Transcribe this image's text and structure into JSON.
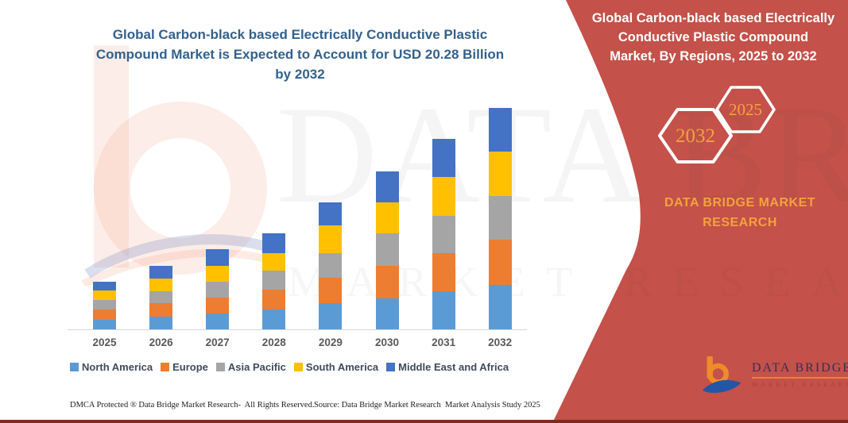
{
  "left_chart": {
    "title_lines": [
      "Global Carbon-black based Electrically Conductive Plastic",
      "Compound Market is Expected to Account for USD 20.28 Billion",
      "by 2032"
    ]
  },
  "chart_data": {
    "type": "bar",
    "stacked": true,
    "title": "Global Carbon-black based Electrically Conductive Plastic Compound Market is Expected to Account for USD 20.28 Billion by 2032",
    "value_unit": "USD Billion",
    "categories": [
      "2025",
      "2026",
      "2027",
      "2028",
      "2029",
      "2030",
      "2031",
      "2032"
    ],
    "series": [
      {
        "name": "North America",
        "color": "#5B9BD5",
        "values": [
          0.9,
          1.2,
          1.45,
          1.8,
          2.38,
          2.85,
          3.5,
          4.08
        ]
      },
      {
        "name": "Europe",
        "color": "#ED7D31",
        "values": [
          0.92,
          1.17,
          1.48,
          1.8,
          2.38,
          2.98,
          3.5,
          4.12
        ]
      },
      {
        "name": "Asia Pacific",
        "color": "#A5A5A5",
        "values": [
          0.85,
          1.1,
          1.42,
          1.78,
          2.2,
          2.95,
          3.42,
          4.01
        ]
      },
      {
        "name": "South America",
        "color": "#FFC000",
        "values": [
          0.87,
          1.18,
          1.47,
          1.62,
          2.6,
          2.82,
          3.5,
          4.06
        ]
      },
      {
        "name": "Middle East and Africa",
        "color": "#4472C4",
        "values": [
          0.83,
          1.2,
          1.5,
          1.8,
          2.04,
          2.9,
          3.48,
          4.01
        ]
      }
    ],
    "totals": [
      4.37,
      5.85,
      7.32,
      8.8,
      11.6,
      14.5,
      17.4,
      20.28
    ],
    "xlabel": "",
    "ylabel": "",
    "ylim": [
      0,
      20.28
    ],
    "grid": false,
    "value_axis_visible": false,
    "legend_position": "bottom"
  },
  "footer": {
    "left": "DMCA Protected ® Data Bridge Market Research-  All Rights Reserved.",
    "right": "Source: Data Bridge Market Research  Market Analysis Study 2025"
  },
  "right_panel": {
    "bg_color": "#C4514A",
    "accent_color": "#F2A33C",
    "title_lines": [
      "Global Carbon-black based Electrically",
      "Conductive Plastic Compound",
      "Market, By Regions, 2025 to 2032"
    ],
    "hexagons": [
      {
        "label": "2032"
      },
      {
        "label": "2025"
      }
    ],
    "brand_text": "DATA BRIDGE MARKET RESEARCH",
    "logo": {
      "brand": "DATA BRIDGE",
      "sub": "MARKET RESEARCH"
    }
  },
  "watermark": {
    "big_text": "DATA BRIDGE",
    "sub_text": "MARKET RESEARCH"
  }
}
